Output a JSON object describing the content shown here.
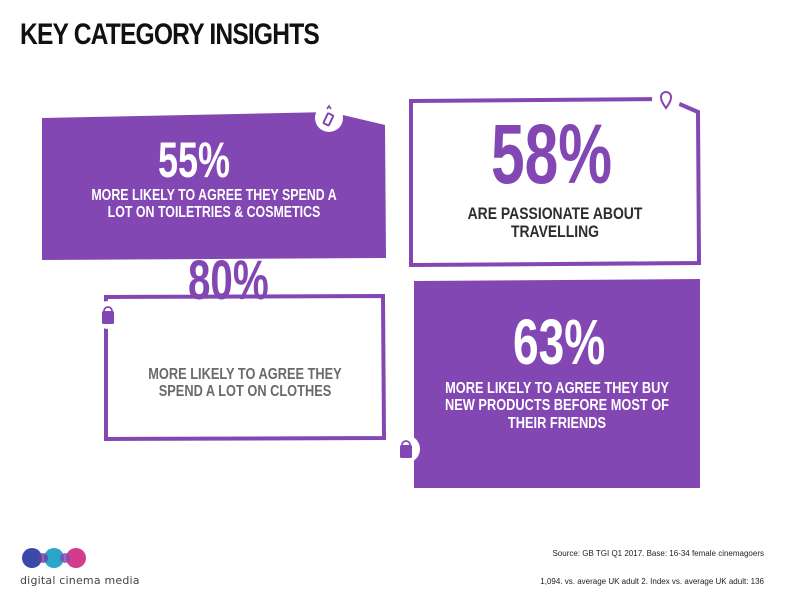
{
  "title": "KEY CATEGORY INSIGHTS",
  "insights": [
    {
      "value": "55%",
      "text": [
        "MORE LIKELY TO AGREE THEY SPEND A",
        "LOT ON TOILETRIES & COSMETICS"
      ],
      "icon": "lipstick-icon"
    },
    {
      "value": "58%",
      "text": [
        "ARE PASSIONATE ABOUT",
        "TRAVELLING"
      ],
      "icon": "map-pin-icon"
    },
    {
      "value": "80%",
      "text": [
        "MORE LIKELY TO AGREE THEY",
        "SPEND A LOT ON CLOTHES"
      ],
      "icon": "shopping-bag-icon"
    },
    {
      "value": "63%",
      "text": [
        "MORE LIKELY TO AGREE THEY BUY",
        "NEW PRODUCTS BEFORE MOST OF",
        "THEIR FRIENDS"
      ],
      "icon": "shopping-bag-icon"
    }
  ],
  "logo": {
    "text": "digital cinema media"
  },
  "source": {
    "line1": "Source: GB TGI Q1 2017. Base: 16-34 female cinemagoers",
    "line2": "1,094. vs. average UK adult 2. Index vs. average UK adult: 136"
  },
  "colors": {
    "purple": "#8247b3",
    "text_dark": "#2d2d2d",
    "white": "#ffffff"
  }
}
